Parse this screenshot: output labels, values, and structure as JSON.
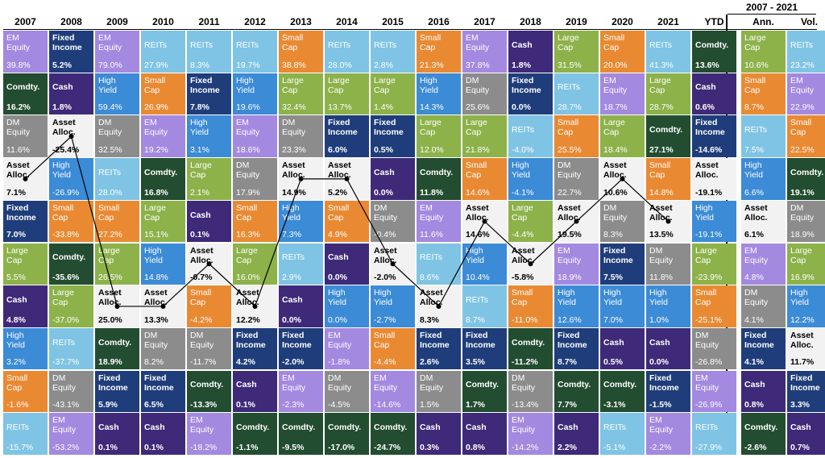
{
  "colors": {
    "EM Equity": "#a489e0",
    "Fixed Income": "#1f3d7a",
    "REITs": "#7fc4e4",
    "Small Cap": "#e98a33",
    "Cash": "#3e2a78",
    "Large Cap": "#8db24a",
    "Comdty.": "#234d31",
    "High Yield": "#3c8bd6",
    "DM Equity": "#8c8c8c",
    "Asset Alloc.": "#f2f2f2"
  },
  "period_header": "2007 - 2021",
  "chart_data": {
    "type": "table",
    "columns": [
      "2007",
      "2008",
      "2009",
      "2010",
      "2011",
      "2012",
      "2013",
      "2014",
      "2015",
      "2016",
      "2017",
      "2018",
      "2019",
      "2020",
      "2021",
      "YTD",
      "Ann.",
      "Vol."
    ],
    "rows": [
      [
        [
          "EM\nEquity",
          "39.8%"
        ],
        [
          "Fixed\nIncome",
          "5.2%"
        ],
        [
          "EM\nEquity",
          "79.0%"
        ],
        [
          "REITs",
          "27.9%"
        ],
        [
          "REITs",
          "8.3%"
        ],
        [
          "REITs",
          "19.7%"
        ],
        [
          "Small\nCap",
          "38.8%"
        ],
        [
          "REITs",
          "28.0%"
        ],
        [
          "REITs",
          "2.8%"
        ],
        [
          "Small\nCap",
          "21.3%"
        ],
        [
          "EM\nEquity",
          "37.8%"
        ],
        [
          "Cash",
          "1.8%"
        ],
        [
          "Large\nCap",
          "31.5%"
        ],
        [
          "Small\nCap",
          "20.0%"
        ],
        [
          "REITs",
          "41.3%"
        ],
        [
          "Comdty.",
          "13.6%"
        ],
        [
          "Large\nCap",
          "10.6%"
        ],
        [
          "REITs",
          "23.2%"
        ]
      ],
      [
        [
          "Comdty.",
          "16.2%"
        ],
        [
          "Cash",
          "1.8%"
        ],
        [
          "High\nYield",
          "59.4%"
        ],
        [
          "Small\nCap",
          "26.9%"
        ],
        [
          "Fixed\nIncome",
          "7.8%"
        ],
        [
          "High\nYield",
          "19.6%"
        ],
        [
          "Large\nCap",
          "32.4%"
        ],
        [
          "Large\nCap",
          "13.7%"
        ],
        [
          "Large\nCap",
          "1.4%"
        ],
        [
          "High\nYield",
          "14.3%"
        ],
        [
          "DM\nEquity",
          "25.6%"
        ],
        [
          "Fixed\nIncome",
          "0.0%"
        ],
        [
          "REITs",
          "28.7%"
        ],
        [
          "EM\nEquity",
          "18.7%"
        ],
        [
          "Large\nCap",
          "28.7%"
        ],
        [
          "Cash",
          "0.6%"
        ],
        [
          "Small\nCap",
          "8.7%"
        ],
        [
          "EM\nEquity",
          "22.9%"
        ]
      ],
      [
        [
          "DM\nEquity",
          "11.6%"
        ],
        [
          "Asset\nAlloc.",
          "-25.4%"
        ],
        [
          "DM\nEquity",
          "32.5%"
        ],
        [
          "EM\nEquity",
          "19.2%"
        ],
        [
          "High\nYield",
          "3.1%"
        ],
        [
          "EM\nEquity",
          "18.6%"
        ],
        [
          "DM\nEquity",
          "23.3%"
        ],
        [
          "Fixed\nIncome",
          "6.0%"
        ],
        [
          "Fixed\nIncome",
          "0.5%"
        ],
        [
          "Large\nCap",
          "12.0%"
        ],
        [
          "Large\nCap",
          "21.8%"
        ],
        [
          "REITs",
          "-4.0%"
        ],
        [
          "Small\nCap",
          "25.5%"
        ],
        [
          "Large\nCap",
          "18.4%"
        ],
        [
          "Comdty.",
          "27.1%"
        ],
        [
          "Fixed\nIncome",
          "-14.6%"
        ],
        [
          "REITs",
          "7.5%"
        ],
        [
          "Small\nCap",
          "22.5%"
        ]
      ],
      [
        [
          "Asset\nAlloc.",
          "7.1%"
        ],
        [
          "High\nYield",
          "-26.9%"
        ],
        [
          "REITs",
          "28.0%"
        ],
        [
          "Comdty.",
          "16.8%"
        ],
        [
          "Large\nCap",
          "2.1%"
        ],
        [
          "DM\nEquity",
          "17.9%"
        ],
        [
          "Asset\nAlloc.",
          "14.9%"
        ],
        [
          "Asset\nAlloc.",
          "5.2%"
        ],
        [
          "Cash",
          "0.0%"
        ],
        [
          "Comdty.",
          "11.8%"
        ],
        [
          "Small\nCap",
          "14.6%"
        ],
        [
          "High\nYield",
          "-4.1%"
        ],
        [
          "DM\nEquity",
          "22.7%"
        ],
        [
          "Asset\nAlloc.",
          "10.6%"
        ],
        [
          "Small\nCap",
          "14.8%"
        ],
        [
          "Asset\nAlloc.",
          "-19.1%"
        ],
        [
          "High\nYield",
          "6.6%"
        ],
        [
          "Comdty.",
          "19.1%"
        ]
      ],
      [
        [
          "Fixed\nIncome",
          "7.0%"
        ],
        [
          "Small\nCap",
          "-33.8%"
        ],
        [
          "Small\nCap",
          "27.2%"
        ],
        [
          "Large\nCap",
          "15.1%"
        ],
        [
          "Cash",
          "0.1%"
        ],
        [
          "Small\nCap",
          "16.3%"
        ],
        [
          "High\nYield",
          "7.3%"
        ],
        [
          "Small\nCap",
          "4.9%"
        ],
        [
          "DM\nEquity",
          "-0.4%"
        ],
        [
          "EM\nEquity",
          "11.6%"
        ],
        [
          "Asset\nAlloc.",
          "14.6%"
        ],
        [
          "Large\nCap",
          "-4.4%"
        ],
        [
          "Asset\nAlloc.",
          "19.5%"
        ],
        [
          "DM\nEquity",
          "8.3%"
        ],
        [
          "Asset\nAlloc.",
          "13.5%"
        ],
        [
          "High\nYield",
          "-19.1%"
        ],
        [
          "Asset\nAlloc.",
          "6.1%"
        ],
        [
          "DM\nEquity",
          "18.9%"
        ]
      ],
      [
        [
          "Large\nCap",
          "5.5%"
        ],
        [
          "Comdty.",
          "-35.6%"
        ],
        [
          "Large\nCap",
          "26.5%"
        ],
        [
          "High\nYield",
          "14.8%"
        ],
        [
          "Asset\nAlloc.",
          "-0.7%"
        ],
        [
          "Large\nCap",
          "16.0%"
        ],
        [
          "REITs",
          "2.9%"
        ],
        [
          "Cash",
          "0.0%"
        ],
        [
          "Asset\nAlloc.",
          "-2.0%"
        ],
        [
          "REITs",
          "8.6%"
        ],
        [
          "High\nYield",
          "10.4%"
        ],
        [
          "Asset\nAlloc.",
          "-5.8%"
        ],
        [
          "EM\nEquity",
          "18.9%"
        ],
        [
          "Fixed\nIncome",
          "7.5%"
        ],
        [
          "DM\nEquity",
          "11.8%"
        ],
        [
          "Large\nCap",
          "-23.9%"
        ],
        [
          "EM\nEquity",
          "4.8%"
        ],
        [
          "Large\nCap",
          "16.9%"
        ]
      ],
      [
        [
          "Cash",
          "4.8%"
        ],
        [
          "Large\nCap",
          "-37.0%"
        ],
        [
          "Asset\nAlloc.",
          "25.0%"
        ],
        [
          "Asset\nAlloc.",
          "13.3%"
        ],
        [
          "Small\nCap",
          "-4.2%"
        ],
        [
          "Asset\nAlloc.",
          "12.2%"
        ],
        [
          "Cash",
          "0.0%"
        ],
        [
          "High\nYield",
          "0.0%"
        ],
        [
          "High\nYield",
          "-2.7%"
        ],
        [
          "Asset\nAlloc.",
          "8.3%"
        ],
        [
          "REITs",
          "8.7%"
        ],
        [
          "Small\nCap",
          "-11.0%"
        ],
        [
          "High\nYield",
          "12.6%"
        ],
        [
          "High\nYield",
          "7.0%"
        ],
        [
          "High\nYield",
          "1.0%"
        ],
        [
          "Small\nCap",
          "-25.1%"
        ],
        [
          "DM\nEquity",
          "4.1%"
        ],
        [
          "High\nYield",
          "12.2%"
        ]
      ],
      [
        [
          "High\nYield",
          "3.2%"
        ],
        [
          "REITs",
          "-37.7%"
        ],
        [
          "Comdty.",
          "18.9%"
        ],
        [
          "DM\nEquity",
          "8.2%"
        ],
        [
          "DM\nEquity",
          "-11.7%"
        ],
        [
          "Fixed\nIncome",
          "4.2%"
        ],
        [
          "Fixed\nIncome",
          "-2.0%"
        ],
        [
          "EM\nEquity",
          "-1.8%"
        ],
        [
          "Small\nCap",
          "-4.4%"
        ],
        [
          "Fixed\nIncome",
          "2.6%"
        ],
        [
          "Fixed\nIncome",
          "3.5%"
        ],
        [
          "Comdty.",
          "-11.2%"
        ],
        [
          "Fixed\nIncome",
          "8.7%"
        ],
        [
          "Cash",
          "0.5%"
        ],
        [
          "Cash",
          "0.0%"
        ],
        [
          "DM\nEquity",
          "-26.8%"
        ],
        [
          "Fixed\nIncome",
          "4.1%"
        ],
        [
          "Asset\nAlloc.",
          "11.7%"
        ]
      ],
      [
        [
          "Small\nCap",
          "-1.6%"
        ],
        [
          "DM\nEquity",
          "-43.1%"
        ],
        [
          "Fixed\nIncome",
          "5.9%"
        ],
        [
          "Fixed\nIncome",
          "6.5%"
        ],
        [
          "Comdty.",
          "-13.3%"
        ],
        [
          "Cash",
          "0.1%"
        ],
        [
          "EM\nEquity",
          "-2.3%"
        ],
        [
          "DM\nEquity",
          "-4.5%"
        ],
        [
          "EM\nEquity",
          "-14.6%"
        ],
        [
          "DM\nEquity",
          "1.5%"
        ],
        [
          "Comdty.",
          "1.7%"
        ],
        [
          "DM\nEquity",
          "-13.4%"
        ],
        [
          "Comdty.",
          "7.7%"
        ],
        [
          "Comdty.",
          "-3.1%"
        ],
        [
          "Fixed\nIncome",
          "-1.5%"
        ],
        [
          "EM\nEquity",
          "-26.9%"
        ],
        [
          "Cash",
          "0.8%"
        ],
        [
          "Fixed\nIncome",
          "3.3%"
        ]
      ],
      [
        [
          "REITs",
          "-15.7%"
        ],
        [
          "EM\nEquity",
          "-53.2%"
        ],
        [
          "Cash",
          "0.1%"
        ],
        [
          "Cash",
          "0.1%"
        ],
        [
          "EM\nEquity",
          "-18.2%"
        ],
        [
          "Comdty.",
          "-1.1%"
        ],
        [
          "Comdty.",
          "-9.5%"
        ],
        [
          "Comdty.",
          "-17.0%"
        ],
        [
          "Comdty.",
          "-24.7%"
        ],
        [
          "Cash",
          "0.3%"
        ],
        [
          "Cash",
          "0.8%"
        ],
        [
          "EM\nEquity",
          "-14.2%"
        ],
        [
          "Cash",
          "2.2%"
        ],
        [
          "REITs",
          "-5.1%"
        ],
        [
          "EM\nEquity",
          "-2.2%"
        ],
        [
          "REITs",
          "-27.9%"
        ],
        [
          "Comdty.",
          "-2.6%"
        ],
        [
          "Cash",
          "0.7%"
        ]
      ]
    ],
    "highlight_series": "Asset Alloc.",
    "asset_alloc_rank_by_year": [
      4,
      3,
      7,
      7,
      6,
      7,
      4,
      4,
      6,
      7,
      5,
      6,
      5,
      4,
      5
    ]
  }
}
